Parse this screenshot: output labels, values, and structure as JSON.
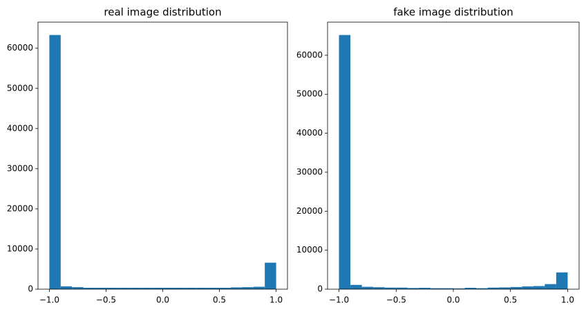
{
  "chart_data": [
    {
      "type": "histogram",
      "title": "real image distribution",
      "color": "#1f77b4",
      "bins": [
        -1.0,
        -0.9,
        -0.8,
        -0.7,
        -0.6,
        -0.5,
        -0.4,
        -0.3,
        -0.2,
        -0.1,
        0.0,
        0.1,
        0.2,
        0.3,
        0.4,
        0.5,
        0.6,
        0.7,
        0.8,
        0.9,
        1.0
      ],
      "counts": [
        63300,
        700,
        500,
        350,
        350,
        350,
        350,
        350,
        350,
        350,
        350,
        350,
        350,
        350,
        350,
        350,
        450,
        500,
        600,
        6600
      ],
      "xlim": [
        -1.1,
        1.1
      ],
      "ylim": [
        0,
        66500
      ],
      "xticks": [
        {
          "value": -1.0,
          "label": "−1.0"
        },
        {
          "value": -0.5,
          "label": "−0.5"
        },
        {
          "value": 0,
          "label": "0.0"
        },
        0.5,
        {
          "value": 1.0,
          "label": "1.0"
        }
      ],
      "yticks": [
        0,
        10000,
        20000,
        30000,
        40000,
        50000,
        60000
      ]
    },
    {
      "type": "histogram",
      "title": "fake image distribution",
      "color": "#1f77b4",
      "bins": [
        -1.0,
        -0.9,
        -0.8,
        -0.7,
        -0.6,
        -0.5,
        -0.4,
        -0.3,
        -0.2,
        -0.1,
        0.0,
        0.1,
        0.2,
        0.3,
        0.4,
        0.5,
        0.6,
        0.7,
        0.8,
        0.9,
        1.0
      ],
      "counts": [
        65200,
        1100,
        600,
        500,
        400,
        400,
        300,
        350,
        250,
        250,
        200,
        350,
        250,
        400,
        450,
        550,
        700,
        800,
        1300,
        4300
      ],
      "xlim": [
        -1.1,
        1.1
      ],
      "ylim": [
        0,
        68500
      ],
      "xticks": [
        {
          "value": -1.0,
          "label": "−1.0"
        },
        {
          "value": -0.5,
          "label": "−0.5"
        },
        {
          "value": 0,
          "label": "0.0"
        },
        0.5,
        {
          "value": 1.0,
          "label": "1.0"
        }
      ],
      "yticks": [
        0,
        10000,
        20000,
        30000,
        40000,
        50000,
        60000
      ]
    }
  ]
}
